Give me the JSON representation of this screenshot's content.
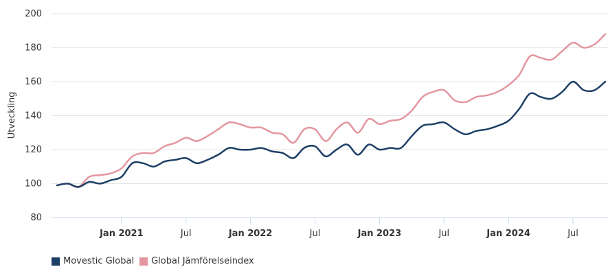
{
  "chart_data": {
    "type": "line",
    "ylabel": "Utveckling",
    "xlabel": "",
    "ylim": [
      80,
      200
    ],
    "y_ticks": [
      "80",
      "100",
      "120",
      "140",
      "160",
      "180",
      "200"
    ],
    "x_ticks": [
      {
        "label": "Jan 2021",
        "date": "2021-01",
        "bold": true
      },
      {
        "label": "Jul",
        "date": "2021-07",
        "bold": false
      },
      {
        "label": "Jan 2022",
        "date": "2022-01",
        "bold": true
      },
      {
        "label": "Jul",
        "date": "2022-07",
        "bold": false
      },
      {
        "label": "Jan 2023",
        "date": "2023-01",
        "bold": true
      },
      {
        "label": "Jul",
        "date": "2023-07",
        "bold": false
      },
      {
        "label": "Jan 2024",
        "date": "2024-01",
        "bold": true
      },
      {
        "label": "Jul",
        "date": "2024-07",
        "bold": false
      }
    ],
    "x": [
      "2020-07",
      "2020-08",
      "2020-09",
      "2020-10",
      "2020-11",
      "2020-12",
      "2021-01",
      "2021-02",
      "2021-03",
      "2021-04",
      "2021-05",
      "2021-06",
      "2021-07",
      "2021-08",
      "2021-09",
      "2021-10",
      "2021-11",
      "2021-12",
      "2022-01",
      "2022-02",
      "2022-03",
      "2022-04",
      "2022-05",
      "2022-06",
      "2022-07",
      "2022-08",
      "2022-09",
      "2022-10",
      "2022-11",
      "2022-12",
      "2023-01",
      "2023-02",
      "2023-03",
      "2023-04",
      "2023-05",
      "2023-06",
      "2023-07",
      "2023-08",
      "2023-09",
      "2023-10",
      "2023-11",
      "2023-12",
      "2024-01",
      "2024-02",
      "2024-03",
      "2024-04",
      "2024-05",
      "2024-06",
      "2024-07",
      "2024-08",
      "2024-09",
      "2024-10"
    ],
    "grid": true,
    "legend_placement": "bottom-left",
    "series": [
      {
        "name": "Movestic Global",
        "color": "#1d3f66",
        "values": [
          99,
          100,
          98,
          101,
          100,
          102,
          104,
          112,
          112,
          110,
          113,
          114,
          115,
          112,
          114,
          117,
          121,
          120,
          120,
          121,
          119,
          118,
          115,
          121,
          122,
          116,
          120,
          123,
          117,
          123,
          120,
          121,
          121,
          128,
          134,
          135,
          136,
          132,
          129,
          131,
          132,
          134,
          137,
          144,
          153,
          151,
          150,
          154,
          160,
          155,
          155,
          160
        ]
      },
      {
        "name": "Global Jämförelseindex",
        "color": "#e3969f",
        "values": [
          99,
          100,
          98,
          104,
          105,
          106,
          109,
          116,
          118,
          118,
          122,
          124,
          127,
          125,
          128,
          132,
          136,
          135,
          133,
          133,
          130,
          129,
          124,
          132,
          132,
          125,
          132,
          136,
          130,
          138,
          135,
          137,
          138,
          143,
          151,
          154,
          155,
          149,
          148,
          151,
          152,
          154,
          158,
          164,
          175,
          174,
          173,
          178,
          183,
          180,
          182,
          188
        ]
      }
    ]
  }
}
